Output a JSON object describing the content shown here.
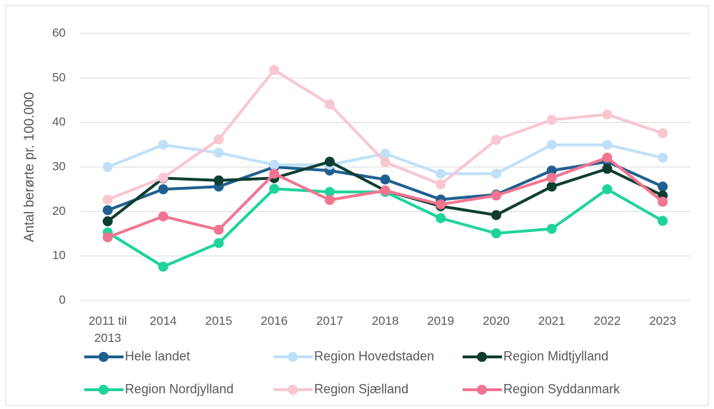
{
  "chart_data": {
    "type": "line",
    "y_label": "Antal berørte pr. 100.000",
    "categories": [
      "2011 til 2013",
      "2014",
      "2015",
      "2016",
      "2017",
      "2018",
      "2019",
      "2020",
      "2021",
      "2022",
      "2023"
    ],
    "series": [
      {
        "name": "Hele landet",
        "color": "#1f5f8f",
        "values": [
          20.3,
          25,
          25.6,
          30,
          29.2,
          27.2,
          22.7,
          23.8,
          29.2,
          31.2,
          25.6
        ]
      },
      {
        "name": "Region Hovedstaden",
        "color": "#bfe1f8",
        "values": [
          30,
          35,
          33.2,
          30.5,
          30.5,
          33,
          28.5,
          28.5,
          35,
          35,
          32.1
        ]
      },
      {
        "name": "Region Midtjylland",
        "color": "#0e3d31",
        "values": [
          17.8,
          27.5,
          27,
          27.5,
          31.2,
          24.7,
          21.2,
          19.2,
          25.6,
          29.6,
          23.6
        ]
      },
      {
        "name": "Region Nordjylland",
        "color": "#1fd39c",
        "values": [
          15.3,
          7.6,
          12.9,
          25.1,
          24.4,
          24.4,
          18.5,
          15.1,
          16.1,
          25,
          17.9
        ]
      },
      {
        "name": "Region Sjælland",
        "color": "#f8c7d0",
        "values": [
          22.7,
          27.6,
          36.2,
          51.8,
          44.1,
          31.1,
          26.1,
          36.1,
          40.6,
          41.8,
          37.6
        ]
      },
      {
        "name": "Region Syddanmark",
        "color": "#f27590",
        "values": [
          14.2,
          18.9,
          15.9,
          28.5,
          22.6,
          24.7,
          21.6,
          23.6,
          27.6,
          32.1,
          22.2
        ]
      }
    ],
    "ylim": [
      0,
      60
    ],
    "yticks": [
      0,
      10,
      20,
      30,
      40,
      50,
      60
    ],
    "grid": true,
    "legend": "bottom"
  }
}
